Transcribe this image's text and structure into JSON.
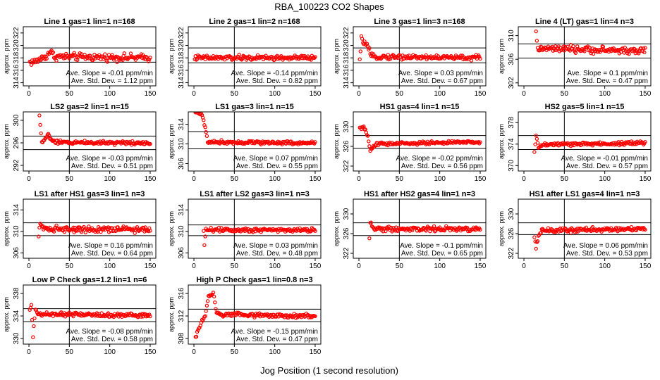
{
  "figure": {
    "title": "RBA_100223  CO2 Shapes",
    "xlabel": "Jog Position (1 second resolution)"
  },
  "colors": {
    "points": "#ff0000",
    "axes": "#000000",
    "background": "#ffffff"
  },
  "chart_data": [
    {
      "type": "scatter",
      "title": "Line 1 gas=1 lin=1 n=168",
      "ylabel": "approx. ppm",
      "xlim": [
        0,
        150
      ],
      "xticks": [
        0,
        50,
        100,
        150
      ],
      "ylim": [
        313.5,
        323
      ],
      "yticks": [
        314,
        316,
        318,
        320,
        322
      ],
      "hlines": [
        317.3,
        319.6
      ],
      "vline": 50,
      "slope": "Ave. Slope =  -0.01  ppm/min",
      "std": "Ave. Std. Dev. =  1.12  ppm",
      "base": 318.0,
      "noise": 0.35,
      "start": 1,
      "shape": [
        [
          1,
          317.3
        ],
        [
          8,
          317.4
        ],
        [
          15,
          317.9
        ],
        [
          22,
          318.3
        ],
        [
          26,
          319.1
        ],
        [
          32,
          318.2
        ],
        [
          150,
          318.0
        ]
      ]
    },
    {
      "type": "scatter",
      "title": "Line 2 gas=1 lin=2 n=168",
      "ylabel": "approx. ppm",
      "xlim": [
        0,
        150
      ],
      "xticks": [
        0,
        50,
        100,
        150
      ],
      "ylim": [
        313.5,
        323
      ],
      "yticks": [
        314,
        316,
        318,
        320,
        322
      ],
      "hlines": [
        317.2,
        319.6
      ],
      "vline": 50,
      "slope": "Ave. Slope =  -0.14  ppm/min",
      "std": "Ave. Std. Dev. =  0.82  ppm",
      "base": 318.0,
      "noise": 0.25,
      "start": 1,
      "shape": [
        [
          1,
          318.0
        ],
        [
          150,
          318.0
        ]
      ]
    },
    {
      "type": "scatter",
      "title": "Line 3 gas=1 lin=3 n=168",
      "ylabel": "approx. ppm",
      "xlim": [
        0,
        150
      ],
      "xticks": [
        0,
        50,
        100,
        150
      ],
      "ylim": [
        313.5,
        323
      ],
      "yticks": [
        314,
        316,
        318,
        320,
        322
      ],
      "hlines": [
        317.2,
        319.6
      ],
      "vline": 50,
      "slope": "Ave. Slope =  0.03  ppm/min",
      "std": "Ave. Std. Dev. =  0.67  ppm",
      "base": 318.0,
      "noise": 0.25,
      "start": 1,
      "shape": [
        [
          1,
          317.5
        ],
        [
          3,
          321.0
        ],
        [
          6,
          320.6
        ],
        [
          9,
          320.0
        ],
        [
          12,
          319.5
        ],
        [
          15,
          318.2
        ],
        [
          150,
          318.0
        ]
      ]
    },
    {
      "type": "scatter",
      "title": "Line 4 (LT) gas=1 lin=4 n=3",
      "ylabel": "approx. ppm",
      "xlim": [
        0,
        150
      ],
      "xticks": [
        0,
        50,
        100,
        150
      ],
      "ylim": [
        301.5,
        311.5
      ],
      "yticks": [
        302,
        306,
        310
      ],
      "hlines": [
        306.2,
        308.6
      ],
      "vline": 50,
      "slope": "Ave. Slope =  0.1  ppm/min",
      "std": "Ave. Std. Dev. =  0.47  ppm",
      "base": 307.4,
      "noise": 0.35,
      "start": 15,
      "shape": [
        [
          15,
          310.2
        ],
        [
          17,
          307.8
        ],
        [
          150,
          307.4
        ]
      ]
    },
    {
      "type": "scatter",
      "title": "LS2 gas=2 lin=1 n=15",
      "ylabel": "approx. ppm",
      "xlim": [
        0,
        150
      ],
      "xticks": [
        0,
        50,
        100,
        150
      ],
      "ylim": [
        291,
        301.5
      ],
      "yticks": [
        292,
        296,
        300
      ],
      "hlines": [
        294.8,
        297.2
      ],
      "vline": 50,
      "slope": "Ave. Slope =  -0.03  ppm/min",
      "std": "Ave. Std. Dev. =  0.51  ppm",
      "base": 296.0,
      "noise": 0.2,
      "start": 13,
      "shape": [
        [
          13,
          300.8
        ],
        [
          16,
          296.0
        ],
        [
          24,
          297.5
        ],
        [
          28,
          296.5
        ],
        [
          32,
          296.1
        ],
        [
          150,
          296.0
        ]
      ]
    },
    {
      "type": "scatter",
      "title": "LS1 gas=3 lin=1 n=15",
      "ylabel": "approx. ppm",
      "xlim": [
        0,
        150
      ],
      "xticks": [
        0,
        50,
        100,
        150
      ],
      "ylim": [
        304.5,
        316.5
      ],
      "yticks": [
        306,
        310,
        314
      ],
      "hlines": [
        309.0,
        312.5
      ],
      "vline": 50,
      "slope": "Ave. Slope =  0.07  ppm/min",
      "std": "Ave. Std. Dev. =  0.55  ppm",
      "base": 310.2,
      "noise": 0.22,
      "start": 1,
      "shape": [
        [
          1,
          316.5
        ],
        [
          10,
          316.0
        ],
        [
          14,
          313.5
        ],
        [
          17,
          310.4
        ],
        [
          150,
          310.2
        ]
      ]
    },
    {
      "type": "scatter",
      "title": "HS1 gas=4 lin=1 n=15",
      "ylabel": "approx. ppm",
      "xlim": [
        0,
        150
      ],
      "xticks": [
        0,
        50,
        100,
        150
      ],
      "ylim": [
        321,
        333
      ],
      "yticks": [
        322,
        326,
        330
      ],
      "hlines": [
        325.6,
        328.2
      ],
      "vline": 50,
      "slope": "Ave. Slope =  -0.02  ppm/min",
      "std": "Ave. Std. Dev. =  0.56  ppm",
      "base": 326.9,
      "noise": 0.2,
      "start": 1,
      "shape": [
        [
          1,
          329.6
        ],
        [
          5,
          329.8
        ],
        [
          8,
          329.4
        ],
        [
          11,
          328.0
        ],
        [
          14,
          325.0
        ],
        [
          17,
          325.8
        ],
        [
          22,
          326.5
        ],
        [
          150,
          326.9
        ]
      ]
    },
    {
      "type": "scatter",
      "title": "HS2 gas=5 lin=1 n=15",
      "ylabel": "approx. ppm",
      "xlim": [
        0,
        150
      ],
      "xticks": [
        0,
        50,
        100,
        150
      ],
      "ylim": [
        369,
        380
      ],
      "yticks": [
        370,
        374,
        378
      ],
      "hlines": [
        373.0,
        375.6
      ],
      "vline": 50,
      "slope": "Ave. Slope =  -0.01  ppm/min",
      "std": "Ave. Std. Dev. =  0.57  ppm",
      "base": 374.2,
      "noise": 0.22,
      "start": 13,
      "shape": [
        [
          13,
          372.2
        ],
        [
          15,
          375.5
        ],
        [
          18,
          373.4
        ],
        [
          22,
          373.9
        ],
        [
          150,
          374.2
        ]
      ]
    },
    {
      "type": "scatter",
      "title": "LS1 after HS1 gas=3 lin=1 n=3",
      "ylabel": "approx. ppm",
      "xlim": [
        0,
        150
      ],
      "xticks": [
        0,
        50,
        100,
        150
      ],
      "ylim": [
        305,
        316
      ],
      "yticks": [
        306,
        310,
        314
      ],
      "hlines": [
        309.2,
        311.6
      ],
      "vline": 50,
      "slope": "Ave. Slope =  0.16  ppm/min",
      "std": "Ave. Std. Dev. =  0.64  ppm",
      "base": 310.4,
      "noise": 0.35,
      "start": 12,
      "shape": [
        [
          12,
          309.5
        ],
        [
          14,
          311.8
        ],
        [
          18,
          310.5
        ],
        [
          150,
          310.4
        ]
      ]
    },
    {
      "type": "scatter",
      "title": "LS1 after LS2 gas=3 lin=1 n=3",
      "ylabel": "approx. ppm",
      "xlim": [
        0,
        150
      ],
      "xticks": [
        0,
        50,
        100,
        150
      ],
      "ylim": [
        305,
        316
      ],
      "yticks": [
        306,
        310,
        314
      ],
      "hlines": [
        309.2,
        311.2
      ],
      "vline": 50,
      "slope": "Ave. Slope =  0.03  ppm/min",
      "std": "Ave. Std. Dev. =  0.48  ppm",
      "base": 310.3,
      "noise": 0.25,
      "start": 12,
      "shape": [
        [
          12,
          310.3
        ],
        [
          13,
          307.5
        ],
        [
          15,
          310.3
        ],
        [
          150,
          310.3
        ]
      ]
    },
    {
      "type": "scatter",
      "title": "HS1 after HS2 gas=4 lin=1 n=3",
      "ylabel": "approx. ppm",
      "xlim": [
        0,
        150
      ],
      "xticks": [
        0,
        50,
        100,
        150
      ],
      "ylim": [
        321,
        333
      ],
      "yticks": [
        322,
        326,
        330
      ],
      "hlines": [
        325.6,
        328.2
      ],
      "vline": 50,
      "slope": "Ave. Slope =  -0.1  ppm/min",
      "std": "Ave. Std. Dev. =  0.65  ppm",
      "base": 326.9,
      "noise": 0.32,
      "start": 13,
      "shape": [
        [
          13,
          325.2
        ],
        [
          14,
          328.4
        ],
        [
          18,
          327.0
        ],
        [
          150,
          326.9
        ]
      ]
    },
    {
      "type": "scatter",
      "title": "HS1 after LS1 gas=4 lin=1 n=3",
      "ylabel": "approx. ppm",
      "xlim": [
        0,
        150
      ],
      "xticks": [
        0,
        50,
        100,
        150
      ],
      "ylim": [
        321,
        333
      ],
      "yticks": [
        322,
        326,
        330
      ],
      "hlines": [
        325.8,
        328.2
      ],
      "vline": 50,
      "slope": "Ave. Slope =  0.06  ppm/min",
      "std": "Ave. Std. Dev. =  0.53  ppm",
      "base": 327.0,
      "noise": 0.28,
      "start": 13,
      "shape": [
        [
          13,
          325.3
        ],
        [
          15,
          323.2
        ],
        [
          18,
          325.6
        ],
        [
          22,
          326.6
        ],
        [
          150,
          327.0
        ]
      ]
    },
    {
      "type": "scatter",
      "title": "Low P Check gas=1.2 lin=1 n=6",
      "ylabel": "approx. ppm",
      "xlim": [
        0,
        150
      ],
      "xticks": [
        0,
        50,
        100,
        150
      ],
      "ylim": [
        329,
        339.5
      ],
      "yticks": [
        330,
        334,
        338
      ],
      "hlines": [
        333.0,
        335.3
      ],
      "vline": 50,
      "slope": "Ave. Slope =  -0.08  ppm/min",
      "std": "Ave. Std. Dev. =  0.58  ppm",
      "base": 334.1,
      "noise": 0.22,
      "start": 1,
      "shape": [
        [
          1,
          335.0
        ],
        [
          3,
          335.8
        ],
        [
          5,
          330.4
        ],
        [
          8,
          335.3
        ],
        [
          12,
          334.3
        ],
        [
          150,
          334.1
        ]
      ]
    },
    {
      "type": "scatter",
      "title": "High P Check gas=1 lin=0.8 n=3",
      "ylabel": "approx. ppm",
      "xlim": [
        0,
        150
      ],
      "xticks": [
        0,
        50,
        100,
        150
      ],
      "ylim": [
        307,
        317.5
      ],
      "yticks": [
        308,
        312,
        316
      ],
      "hlines": [
        311.0,
        313.2
      ],
      "vline": 50,
      "slope": "Ave. Slope =  -0.15  ppm/min",
      "std": "Ave. Std. Dev. =  0.47  ppm",
      "base": 312.0,
      "noise": 0.25,
      "start": 2,
      "shape": [
        [
          2,
          308.5
        ],
        [
          6,
          309.5
        ],
        [
          10,
          311.2
        ],
        [
          14,
          312.0
        ],
        [
          18,
          315.2
        ],
        [
          24,
          316.2
        ],
        [
          28,
          312.5
        ],
        [
          34,
          312.2
        ],
        [
          150,
          312.0
        ]
      ]
    }
  ]
}
